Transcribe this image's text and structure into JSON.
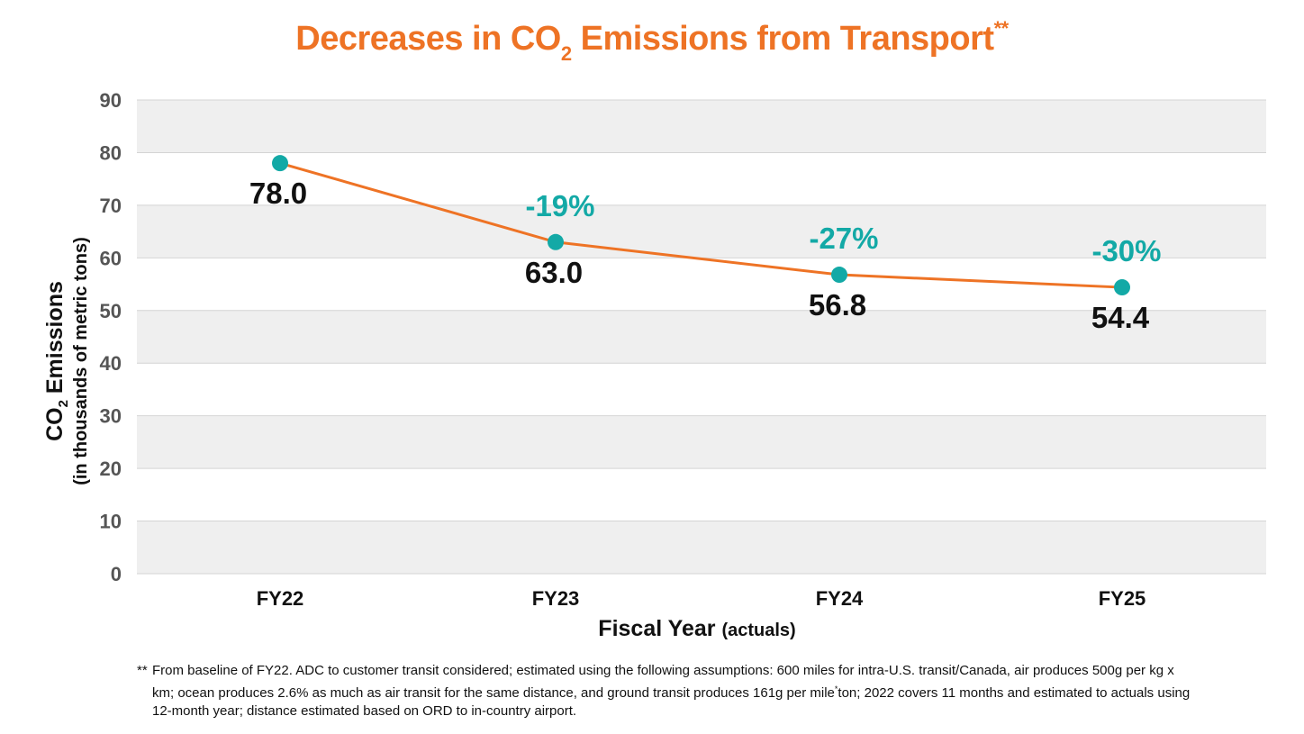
{
  "title": {
    "before": "Decreases in CO",
    "subscript": "2",
    "after": " Emissions from Transport",
    "superscript": "**"
  },
  "chart_data": {
    "type": "line",
    "categories": [
      "FY22",
      "FY23",
      "FY24",
      "FY25"
    ],
    "series": [
      {
        "name": "CO2 Emissions",
        "values": [
          78.0,
          63.0,
          56.8,
          54.4
        ]
      }
    ],
    "value_labels": [
      "78.0",
      "63.0",
      "56.8",
      "54.4"
    ],
    "percent_labels": [
      "",
      "-19%",
      "-27%",
      "-30%"
    ],
    "yticks": [
      0,
      10,
      20,
      30,
      40,
      50,
      60,
      70,
      80,
      90
    ],
    "ylim": [
      0,
      90
    ],
    "ylabel": {
      "line1_before": "CO",
      "line1_sub": "2",
      "line1_after": " Emissions",
      "line2": "(in thousands of metric tons)"
    },
    "xlabel": {
      "main": "Fiscal Year",
      "paren": "(actuals)"
    },
    "grid": true,
    "colors": {
      "line": "#ee7325",
      "marker": "#13a9a6",
      "percent": "#13a9a6",
      "band": "#efefef",
      "axis_text": "#555555"
    }
  },
  "footnote": {
    "marker": "**",
    "text_before": "From baseline of FY22. ADC to customer transit considered; estimated using the following assumptions: 600 miles for intra-U.S. transit/Canada, air produces 500g per kg x km; ocean produces 2.6% as much as air transit for the same distance, and ground transit produces 161g per mile",
    "sup": "*",
    "text_after": "ton; 2022 covers 11 months and estimated to actuals using 12-month year; distance estimated based on ORD to in-country airport."
  }
}
